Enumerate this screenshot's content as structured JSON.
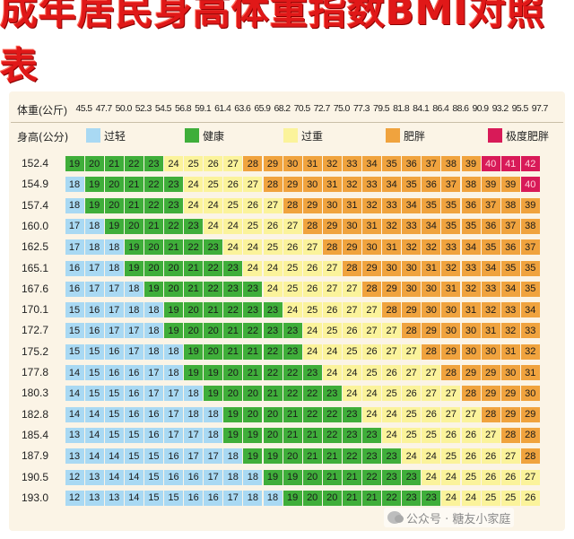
{
  "title": "成年居民身高体重指数BMI对照表",
  "header": {
    "weight_label": "体重(公斤)",
    "height_label": "身高(公分)"
  },
  "colors": {
    "underweight": "#a9d9f3",
    "healthy": "#3fae3a",
    "overweight": "#fbf39b",
    "obese": "#f0a33e",
    "extreme": "#d81a58"
  },
  "legend": [
    {
      "key": "underweight",
      "label": "过轻"
    },
    {
      "key": "healthy",
      "label": "健康"
    },
    {
      "key": "overweight",
      "label": "过重"
    },
    {
      "key": "obese",
      "label": "肥胖"
    },
    {
      "key": "extreme",
      "label": "极度肥胖"
    }
  ],
  "watermark": "公众号 · 糖友小家庭",
  "chart_data": {
    "type": "heatmap",
    "title": "成年居民身高体重指数BMI对照表",
    "xlabel": "体重(公斤)",
    "ylabel": "身高(公分)",
    "x": [
      "45.5",
      "47.7",
      "50.0",
      "52.3",
      "54.5",
      "56.8",
      "59.1",
      "61.4",
      "63.6",
      "65.9",
      "68.2",
      "70.5",
      "72.7",
      "75.0",
      "77.3",
      "79.5",
      "81.8",
      "84.1",
      "86.4",
      "88.6",
      "90.9",
      "93.2",
      "95.5",
      "97.7"
    ],
    "y": [
      "152.4",
      "154.9",
      "157.4",
      "160.0",
      "162.5",
      "165.1",
      "167.6",
      "170.1",
      "172.7",
      "175.2",
      "177.8",
      "180.3",
      "182.8",
      "185.4",
      "187.9",
      "190.5",
      "193.0"
    ],
    "values": [
      [
        19,
        20,
        21,
        22,
        23,
        24,
        25,
        26,
        27,
        28,
        29,
        30,
        31,
        32,
        33,
        34,
        35,
        36,
        37,
        38,
        39,
        40,
        41,
        42
      ],
      [
        18,
        19,
        20,
        21,
        22,
        23,
        24,
        25,
        26,
        27,
        28,
        29,
        30,
        31,
        32,
        33,
        34,
        35,
        36,
        37,
        38,
        39,
        39,
        40
      ],
      [
        18,
        19,
        20,
        21,
        22,
        23,
        24,
        24,
        25,
        26,
        27,
        28,
        29,
        30,
        31,
        32,
        33,
        34,
        35,
        35,
        36,
        37,
        38,
        39
      ],
      [
        17,
        18,
        19,
        20,
        21,
        22,
        23,
        24,
        24,
        25,
        26,
        27,
        28,
        29,
        30,
        31,
        32,
        33,
        34,
        35,
        35,
        36,
        37,
        38
      ],
      [
        17,
        18,
        18,
        19,
        20,
        21,
        22,
        23,
        24,
        24,
        25,
        26,
        27,
        28,
        29,
        30,
        31,
        32,
        32,
        33,
        34,
        35,
        36,
        37
      ],
      [
        16,
        17,
        18,
        19,
        20,
        20,
        21,
        22,
        23,
        24,
        24,
        25,
        26,
        27,
        28,
        29,
        30,
        30,
        31,
        32,
        33,
        34,
        35,
        35
      ],
      [
        16,
        17,
        17,
        18,
        19,
        20,
        21,
        22,
        23,
        23,
        24,
        25,
        26,
        27,
        27,
        28,
        29,
        30,
        30,
        31,
        32,
        33,
        34,
        35
      ],
      [
        15,
        16,
        17,
        18,
        18,
        19,
        20,
        21,
        22,
        23,
        23,
        24,
        25,
        26,
        27,
        27,
        28,
        29,
        30,
        30,
        31,
        32,
        33,
        34
      ],
      [
        15,
        16,
        17,
        17,
        18,
        19,
        20,
        20,
        21,
        22,
        23,
        23,
        24,
        25,
        26,
        27,
        27,
        28,
        29,
        30,
        30,
        31,
        32,
        33
      ],
      [
        15,
        15,
        16,
        17,
        18,
        18,
        19,
        20,
        21,
        21,
        22,
        23,
        24,
        24,
        25,
        26,
        27,
        27,
        28,
        29,
        30,
        30,
        31,
        32
      ],
      [
        14,
        15,
        16,
        16,
        17,
        18,
        19,
        19,
        20,
        21,
        22,
        22,
        23,
        24,
        24,
        25,
        26,
        27,
        27,
        28,
        29,
        29,
        30,
        31
      ],
      [
        14,
        15,
        15,
        16,
        17,
        17,
        18,
        19,
        20,
        20,
        21,
        22,
        22,
        23,
        24,
        24,
        25,
        26,
        27,
        27,
        28,
        29,
        29,
        30
      ],
      [
        14,
        14,
        15,
        16,
        16,
        17,
        18,
        18,
        19,
        20,
        20,
        21,
        22,
        22,
        23,
        24,
        24,
        25,
        26,
        27,
        27,
        28,
        29,
        29
      ],
      [
        13,
        14,
        15,
        15,
        16,
        17,
        17,
        18,
        19,
        19,
        20,
        21,
        21,
        22,
        23,
        23,
        24,
        25,
        25,
        26,
        26,
        27,
        28,
        28
      ],
      [
        13,
        14,
        14,
        15,
        15,
        16,
        17,
        17,
        18,
        19,
        19,
        20,
        21,
        21,
        22,
        23,
        23,
        24,
        24,
        25,
        26,
        26,
        27,
        28
      ],
      [
        12,
        13,
        14,
        14,
        15,
        16,
        16,
        17,
        18,
        18,
        19,
        19,
        20,
        21,
        21,
        22,
        23,
        23,
        24,
        24,
        25,
        26,
        26,
        27
      ],
      [
        12,
        13,
        13,
        14,
        15,
        15,
        16,
        16,
        17,
        18,
        18,
        19,
        20,
        20,
        21,
        21,
        22,
        23,
        23,
        24,
        24,
        25,
        25,
        26
      ]
    ]
  }
}
